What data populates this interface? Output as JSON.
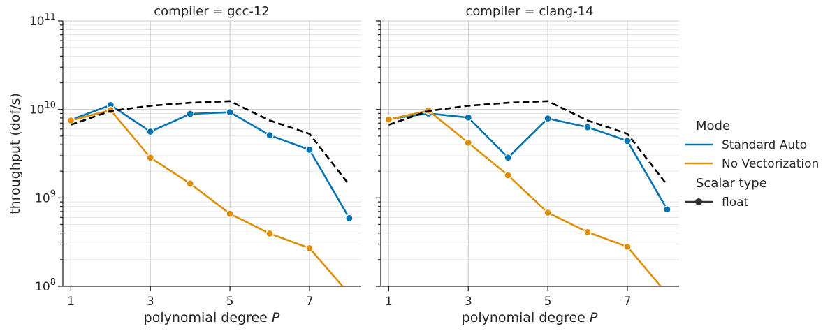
{
  "chart_data": {
    "type": "line",
    "y_label": "throughput (dof/s)",
    "y_scale": "log",
    "y_range": [
      100000000.0,
      100000000000.0
    ],
    "y_ticks": [
      {
        "value": 100000000.0,
        "base": "10",
        "exp": "8"
      },
      {
        "value": 1000000000.0,
        "base": "10",
        "exp": "9"
      },
      {
        "value": 10000000000.0,
        "base": "10",
        "exp": "10"
      },
      {
        "value": 100000000000.0,
        "base": "10",
        "exp": "11"
      }
    ],
    "x_label_text": "polynomial degree ",
    "x_label_symbol": "P",
    "x_range": [
      0.8,
      8.3
    ],
    "x_ticks": [
      1,
      3,
      5,
      7
    ],
    "x_tick_labels": [
      "1",
      "3",
      "5",
      "7"
    ],
    "grid": true,
    "legend_position": "right",
    "legend": {
      "title_mode": "Mode",
      "entries_mode": [
        {
          "label": "Standard Auto",
          "color": "#0173b2"
        },
        {
          "label": "No Vectorization",
          "color": "#de8f05"
        }
      ],
      "title_scalar": "Scalar type",
      "entries_scalar": [
        {
          "label": " float",
          "color": "#333333"
        }
      ]
    },
    "panels": [
      {
        "title": "compiler =  gcc-12",
        "series": [
          {
            "name": "Standard Auto",
            "color": "#0173b2",
            "markers": true,
            "x": [
              1,
              2,
              3,
              4,
              5,
              6,
              7,
              8
            ],
            "y": [
              7600000000.0,
              11200000000.0,
              5600000000.0,
              8900000000.0,
              9300000000.0,
              5100000000.0,
              3500000000.0,
              590000000.0
            ]
          },
          {
            "name": "No Vectorization",
            "color": "#de8f05",
            "markers": true,
            "x": [
              1,
              2,
              3,
              4,
              5,
              6,
              7,
              8
            ],
            "y": [
              7500000000.0,
              9800000000.0,
              2850000000.0,
              1450000000.0,
              660000000.0,
              395000000.0,
              270000000.0,
              82000000.0
            ]
          },
          {
            "name": "",
            "color": "#000000",
            "dashed": true,
            "markers": false,
            "x": [
              1,
              2,
              3,
              4,
              5,
              6,
              7,
              8
            ],
            "y": [
              6700000000.0,
              9600000000.0,
              11000000000.0,
              11900000000.0,
              12400000000.0,
              7500000000.0,
              5300000000.0,
              1400000000.0
            ]
          }
        ]
      },
      {
        "title": "compiler =  clang-14",
        "series": [
          {
            "name": "Standard Auto",
            "color": "#0173b2",
            "markers": true,
            "x": [
              1,
              2,
              3,
              4,
              5,
              6,
              7,
              8
            ],
            "y": [
              7800000000.0,
              9000000000.0,
              8100000000.0,
              2850000000.0,
              7900000000.0,
              6300000000.0,
              4400000000.0,
              740000000.0
            ]
          },
          {
            "name": "No Vectorization",
            "color": "#de8f05",
            "markers": true,
            "x": [
              1,
              2,
              3,
              4,
              5,
              6,
              7,
              8
            ],
            "y": [
              7700000000.0,
              9700000000.0,
              4200000000.0,
              1800000000.0,
              680000000.0,
              410000000.0,
              280000000.0,
              82000000.0
            ]
          },
          {
            "name": "",
            "color": "#000000",
            "dashed": true,
            "markers": false,
            "x": [
              1,
              2,
              3,
              4,
              5,
              6,
              7,
              8
            ],
            "y": [
              6700000000.0,
              9600000000.0,
              11000000000.0,
              11900000000.0,
              12400000000.0,
              7500000000.0,
              5300000000.0,
              1400000000.0
            ]
          }
        ]
      }
    ]
  }
}
